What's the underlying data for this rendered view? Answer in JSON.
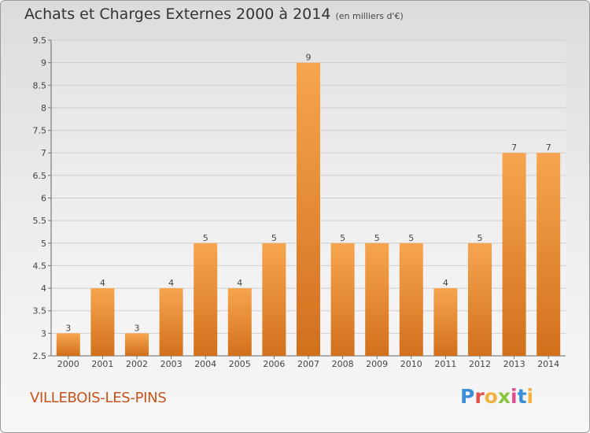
{
  "header": {
    "title": "Achats et Charges Externes 2000 à 2014",
    "unit": "(en milliers d'€)"
  },
  "footer": {
    "commune": "VILLEBOIS-LES-PINS",
    "logo_letters": [
      "P",
      "r",
      "o",
      "x",
      "i",
      "t",
      "i"
    ],
    "logo_colors": [
      "#3a8fd6",
      "#e2504a",
      "#f4b13f",
      "#8cc63f",
      "#e24b8d",
      "#3a8fd6",
      "#f4b13f"
    ]
  },
  "colors": {
    "bar_top": "#f7a54f",
    "bar_bottom": "#d2701c",
    "grid": "#cfcfcf",
    "text": "#444444"
  },
  "chart_data": {
    "type": "bar",
    "title": "Achats et Charges Externes 2000 à 2014",
    "subtitle": "(en milliers d'€)",
    "categories": [
      "2000",
      "2001",
      "2002",
      "2003",
      "2004",
      "2005",
      "2006",
      "2007",
      "2008",
      "2009",
      "2010",
      "2011",
      "2012",
      "2013",
      "2014"
    ],
    "values": [
      3,
      4,
      3,
      4,
      5,
      4,
      5,
      9,
      5,
      5,
      5,
      4,
      5,
      7,
      7
    ],
    "data_labels": [
      "3",
      "4",
      "3",
      "4",
      "5",
      "4",
      "5",
      "9",
      "5",
      "5",
      "5",
      "4",
      "5",
      "7",
      "7"
    ],
    "ylim": [
      2.5,
      9.5
    ],
    "yticks": [
      "2.5",
      "3",
      "3.5",
      "4",
      "4.5",
      "5",
      "5.5",
      "6",
      "6.5",
      "7",
      "7.5",
      "8",
      "8.5",
      "9",
      "9.5"
    ],
    "grid": true,
    "xlabel": "",
    "ylabel": ""
  }
}
